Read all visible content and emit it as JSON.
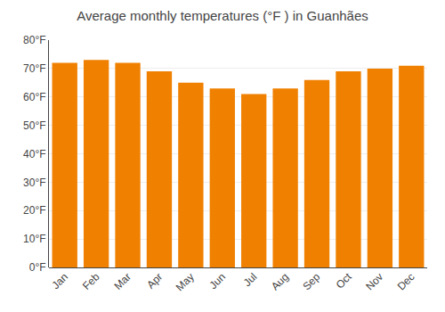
{
  "chart_data": {
    "type": "bar",
    "title": "Average monthly temperatures (°F ) in Guanhães",
    "categories": [
      "Jan",
      "Feb",
      "Mar",
      "Apr",
      "May",
      "Jun",
      "Jul",
      "Aug",
      "Sep",
      "Oct",
      "Nov",
      "Dec"
    ],
    "values": [
      72,
      73,
      72,
      69,
      65,
      63,
      61,
      63,
      66,
      69,
      70,
      71
    ],
    "color": "#F08000",
    "ylim": [
      0,
      80
    ],
    "yticks": [
      {
        "value": 0,
        "label": "0°F"
      },
      {
        "value": 10,
        "label": "10°F"
      },
      {
        "value": 20,
        "label": "20°F"
      },
      {
        "value": 30,
        "label": "30°F"
      },
      {
        "value": 40,
        "label": "40°F"
      },
      {
        "value": 50,
        "label": "50°F"
      },
      {
        "value": 60,
        "label": "60°F"
      },
      {
        "value": 70,
        "label": "70°F"
      },
      {
        "value": 80,
        "label": "80°F"
      }
    ],
    "grid": true
  }
}
